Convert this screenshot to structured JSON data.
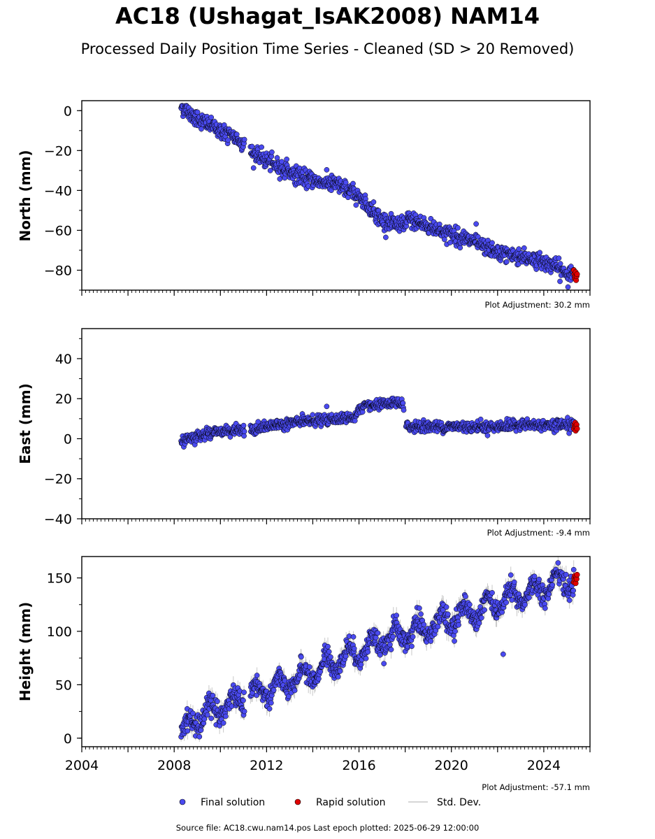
{
  "title": "AC18 (Ushagat_IsAK2008) NAM14",
  "subtitle": "Processed Daily Position Time Series - Cleaned (SD > 20 Removed)",
  "footer": "Source file: AC18.cwu.nam14.pos  Last epoch plotted: 2025-06-29 12:00:00",
  "legend": {
    "final": "Final solution",
    "rapid": "Rapid solution",
    "sd": "Std. Dev."
  },
  "colors": {
    "final": "#4a4af0",
    "rapid": "#e00000",
    "sd": "#c8c8c8",
    "edge": "#000000"
  },
  "chart_data": [
    {
      "type": "scatter",
      "ylabel": "North (mm)",
      "adjustment": "Plot Adjustment: 30.2 mm",
      "xlim": [
        2004,
        2026
      ],
      "ylim": [
        -90,
        5
      ],
      "yticks": [
        0,
        -20,
        -40,
        -60,
        -80
      ],
      "ytick_labels": [
        "0",
        "−20",
        "−40",
        "−60",
        "−80"
      ],
      "series": [
        {
          "name": "Final solution",
          "trend_x": [
            2008.3,
            2009.0,
            2010.0,
            2011.0,
            2011.3,
            2012.0,
            2013.0,
            2014.0,
            2015.0,
            2016.0,
            2017.0,
            2018.0,
            2018.1,
            2019.0,
            2020.0,
            2021.0,
            2022.0,
            2023.0,
            2024.0,
            2024.5,
            2025.0,
            2025.3
          ],
          "trend_y": [
            2,
            -4,
            -10,
            -16,
            -21,
            -25,
            -31,
            -35,
            -37,
            -43,
            -55,
            -58,
            -54,
            -58,
            -62,
            -66,
            -71,
            -73,
            -76,
            -78,
            -82,
            -83
          ],
          "scatter_sd": 2.0
        },
        {
          "name": "Rapid solution",
          "x": [
            2025.3,
            2025.32,
            2025.34,
            2025.36,
            2025.38,
            2025.4,
            2025.42,
            2025.44
          ],
          "y": [
            -80,
            -82,
            -84,
            -83,
            -81,
            -85,
            -83,
            -82
          ]
        }
      ]
    },
    {
      "type": "scatter",
      "ylabel": "East (mm)",
      "adjustment": "Plot Adjustment: -9.4 mm",
      "xlim": [
        2004,
        2026
      ],
      "ylim": [
        -40,
        55
      ],
      "yticks": [
        40,
        20,
        0,
        -20,
        -40
      ],
      "ytick_labels": [
        "40",
        "20",
        "0",
        "−20",
        "−40"
      ],
      "series": [
        {
          "name": "Final solution",
          "trend_x": [
            2008.3,
            2009.0,
            2010.0,
            2011.0,
            2011.3,
            2012.0,
            2013.0,
            2014.0,
            2015.0,
            2015.9,
            2016.0,
            2017.0,
            2017.9,
            2018.0,
            2019.0,
            2020.0,
            2021.0,
            2022.0,
            2023.0,
            2024.0,
            2025.0,
            2025.3
          ],
          "trend_y": [
            -1,
            1,
            4,
            4,
            4,
            6,
            8,
            9,
            10,
            11,
            16,
            17,
            18,
            6,
            6,
            6,
            6,
            6,
            7,
            7,
            7,
            7
          ],
          "scatter_sd": 1.3
        },
        {
          "name": "Rapid solution",
          "x": [
            2025.3,
            2025.32,
            2025.34,
            2025.36,
            2025.38,
            2025.4,
            2025.42,
            2025.44
          ],
          "y": [
            5,
            7,
            6,
            8,
            4,
            6,
            7,
            5
          ]
        }
      ]
    },
    {
      "type": "scatter",
      "ylabel": "Height (mm)",
      "adjustment": "Plot Adjustment: -57.1 mm",
      "xlim": [
        2004,
        2026
      ],
      "ylim": [
        -8,
        170
      ],
      "yticks": [
        150,
        100,
        50,
        0
      ],
      "ytick_labels": [
        "150",
        "100",
        "50",
        "0"
      ],
      "xticks": [
        2004,
        2008,
        2012,
        2016,
        2020,
        2024
      ],
      "xtick_labels": [
        "2004",
        "2008",
        "2012",
        "2016",
        "2020",
        "2024"
      ],
      "series": [
        {
          "name": "Final solution",
          "trend_x": [
            2008.3,
            2009.0,
            2010.0,
            2011.0,
            2012.0,
            2013.0,
            2014.0,
            2015.0,
            2016.0,
            2017.0,
            2018.0,
            2019.0,
            2020.0,
            2021.0,
            2022.0,
            2023.0,
            2024.0,
            2024.5,
            2025.0,
            2025.3
          ],
          "trend_y": [
            5,
            18,
            28,
            35,
            46,
            52,
            62,
            72,
            82,
            90,
            97,
            104,
            112,
            120,
            128,
            133,
            140,
            150,
            148,
            148
          ],
          "seasonal_amplitude": 9,
          "scatter_sd": 5.0
        },
        {
          "name": "Rapid solution",
          "x": [
            2025.3,
            2025.32,
            2025.34,
            2025.36,
            2025.38,
            2025.4,
            2025.42,
            2025.44
          ],
          "y": [
            146,
            150,
            152,
            148,
            145,
            151,
            149,
            153
          ]
        }
      ]
    }
  ]
}
